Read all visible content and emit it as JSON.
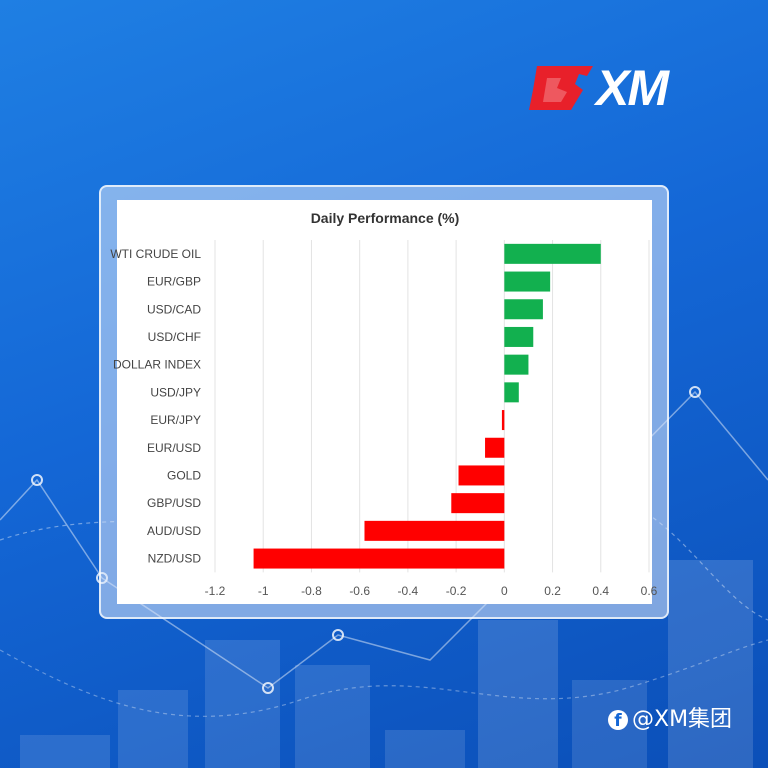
{
  "brand": {
    "logo_text": "XM",
    "watermark_handle": "@XM集团",
    "watermark_icon": "facebook-icon",
    "colors": {
      "background": "#1467d6",
      "logo_red": "#e8202a"
    }
  },
  "chart_data": {
    "type": "bar",
    "orientation": "horizontal",
    "title": "Daily Performance (%)",
    "categories": [
      "WTI CRUDE OIL",
      "EUR/GBP",
      "USD/CAD",
      "USD/CHF",
      "DOLLAR INDEX",
      "USD/JPY",
      "EUR/JPY",
      "EUR/USD",
      "GOLD",
      "GBP/USD",
      "AUD/USD",
      "NZD/USD"
    ],
    "values": [
      0.4,
      0.19,
      0.16,
      0.12,
      0.1,
      0.06,
      -0.01,
      -0.08,
      -0.19,
      -0.22,
      -0.58,
      -1.04
    ],
    "xlim": [
      -1.2,
      0.6
    ],
    "x_ticks": [
      "-1.2",
      "-1",
      "-0.8",
      "-0.6",
      "-0.4",
      "-0.2",
      "0",
      "0.2",
      "0.4",
      "0.6"
    ],
    "positive_color": "#12b04f",
    "negative_color": "#ff0000",
    "grid": "vertical"
  }
}
